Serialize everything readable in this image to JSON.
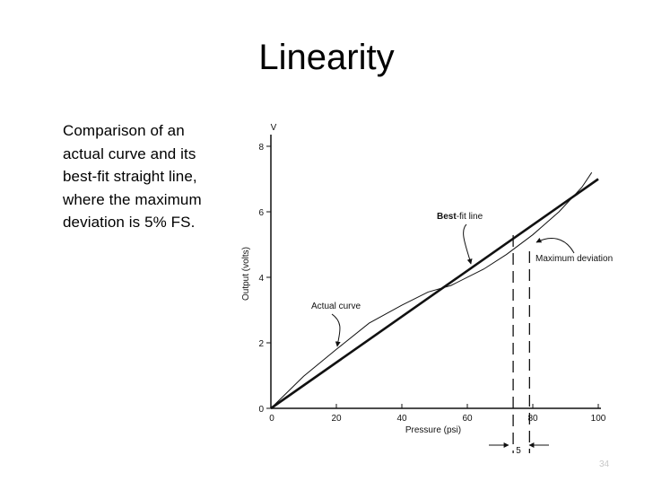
{
  "slide": {
    "title": "Linearity",
    "caption": "Comparison of an actual curve and its best-fit straight line, where the maximum deviation is 5% FS.",
    "page_number": "34"
  },
  "chart_data": {
    "type": "line",
    "title": "",
    "xlabel": "Pressure (psi)",
    "ylabel": "Output (volts)",
    "y_unit_label": "V",
    "xlim": [
      0,
      100
    ],
    "ylim": [
      0,
      8
    ],
    "x_ticks": [
      0,
      20,
      40,
      60,
      80,
      100
    ],
    "y_ticks": [
      0,
      2,
      4,
      6,
      8
    ],
    "grid": false,
    "series": [
      {
        "name": "Best-fit line",
        "style": "thick",
        "x": [
          0,
          100
        ],
        "y": [
          0,
          7.0
        ]
      },
      {
        "name": "Actual curve",
        "style": "thin",
        "x": [
          0,
          10,
          20,
          30,
          40,
          48,
          55,
          65,
          72,
          80,
          88,
          95,
          98
        ],
        "y": [
          0,
          0.98,
          1.8,
          2.6,
          3.15,
          3.55,
          3.75,
          4.25,
          4.7,
          5.3,
          6.0,
          6.75,
          7.2
        ]
      }
    ],
    "annotations": [
      {
        "text": "Best-fit line",
        "bold_part": "Best"
      },
      {
        "text": "Actual curve"
      },
      {
        "text": "Maximum deviation"
      }
    ],
    "deviation": {
      "x_left": 74,
      "x_right": 79,
      "label": "5"
    }
  }
}
